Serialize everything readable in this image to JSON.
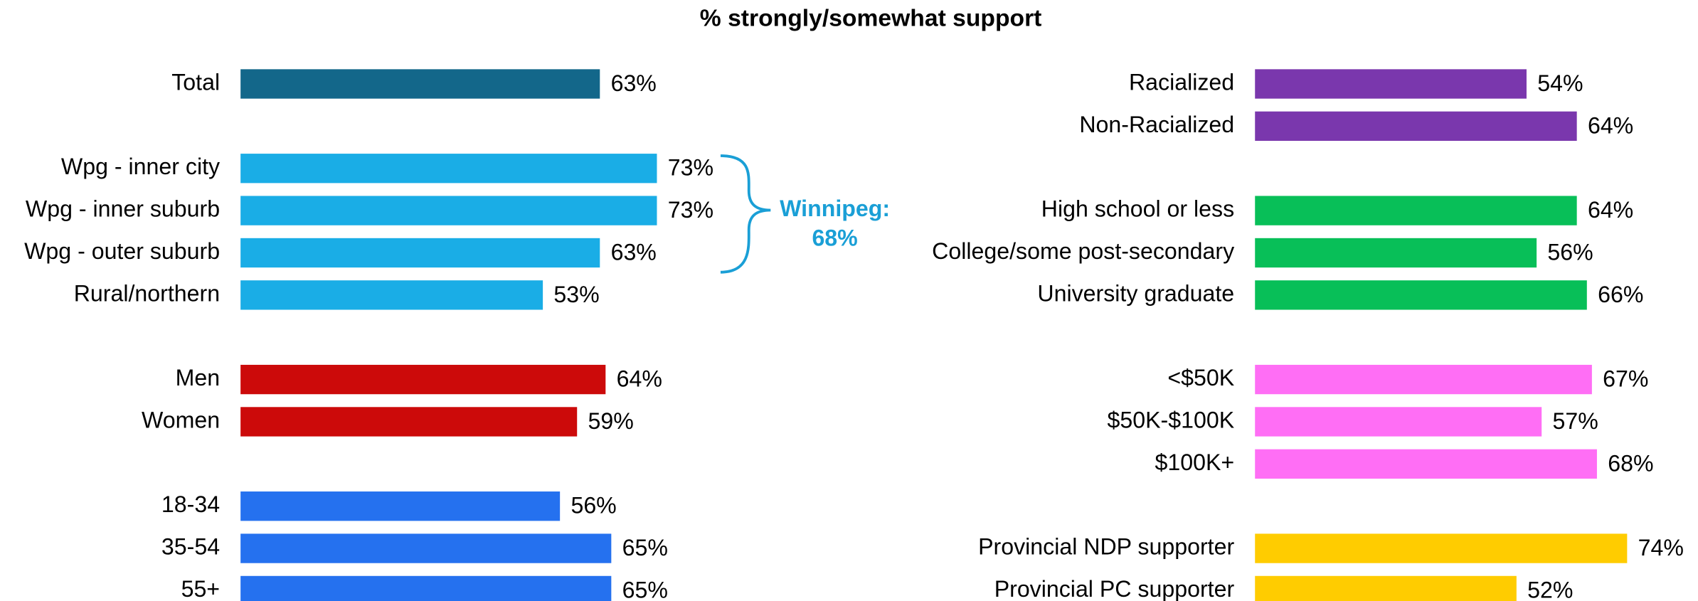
{
  "title": "% strongly/somewhat support",
  "chart_data": [
    {
      "type": "bar",
      "orientation": "horizontal",
      "xlim": [
        0,
        100
      ],
      "groups": [
        {
          "color": "#13678a",
          "categories": [
            "Total"
          ],
          "values": [
            63
          ],
          "value_labels": [
            "63%"
          ]
        },
        {
          "color": "#1aade6",
          "categories": [
            "Wpg - inner city",
            "Wpg - inner suburb",
            "Wpg - outer suburb",
            "Rural/northern"
          ],
          "values": [
            73,
            73,
            63,
            53
          ],
          "value_labels": [
            "73%",
            "73%",
            "63%",
            "53%"
          ]
        },
        {
          "color": "#cc0a0a",
          "categories": [
            "Men",
            "Women"
          ],
          "values": [
            64,
            59
          ],
          "value_labels": [
            "64%",
            "59%"
          ]
        },
        {
          "color": "#2571ef",
          "categories": [
            "18-34",
            "35-54",
            "55+"
          ],
          "values": [
            56,
            65,
            65
          ],
          "value_labels": [
            "56%",
            "65%",
            "65%"
          ]
        }
      ],
      "annotation": {
        "lines": [
          "Winnipeg:",
          "68%"
        ],
        "color": "#1a9fd6"
      }
    },
    {
      "type": "bar",
      "orientation": "horizontal",
      "xlim": [
        0,
        100
      ],
      "groups": [
        {
          "color": "#7a37ad",
          "categories": [
            "Racialized",
            "Non-Racialized"
          ],
          "values": [
            54,
            64
          ],
          "value_labels": [
            "54%",
            "64%"
          ]
        },
        {
          "color": "#08bf58",
          "categories": [
            "High school or less",
            "College/some post-secondary",
            "University graduate"
          ],
          "values": [
            64,
            56,
            66
          ],
          "value_labels": [
            "64%",
            "56%",
            "66%"
          ]
        },
        {
          "color": "#ff6ef5",
          "categories": [
            "<$50K",
            "$50K-$100K",
            "$100K+"
          ],
          "values": [
            67,
            57,
            68
          ],
          "value_labels": [
            "67%",
            "57%",
            "68%"
          ]
        },
        {
          "color": "#ffcc00",
          "categories": [
            "Provincial NDP supporter",
            "Provincial PC supporter"
          ],
          "values": [
            74,
            52
          ],
          "value_labels": [
            "74%",
            "52%"
          ]
        }
      ]
    }
  ]
}
